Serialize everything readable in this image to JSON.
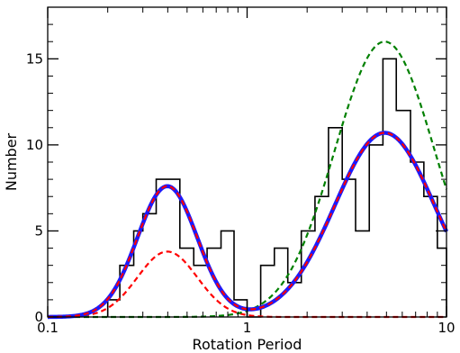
{
  "chart_data": {
    "type": "line",
    "xlabel": "Rotation Period",
    "ylabel": "Number",
    "xscale": "log",
    "xlim": [
      0.1,
      10
    ],
    "ylim": [
      0,
      18
    ],
    "xticks": [
      {
        "value": 0.1,
        "label": "0.1"
      },
      {
        "value": 1,
        "label": "1"
      },
      {
        "value": 10,
        "label": "10"
      }
    ],
    "yticks": [
      {
        "value": 0,
        "label": "0"
      },
      {
        "value": 5,
        "label": "5"
      },
      {
        "value": 10,
        "label": "10"
      },
      {
        "value": 15,
        "label": "15"
      }
    ],
    "grid": false,
    "legend": "none",
    "histogram": {
      "color": "#000000",
      "bin_edges": [
        0.2,
        0.23,
        0.27,
        0.3,
        0.35,
        0.46,
        0.54,
        0.63,
        0.74,
        0.86,
        1.0,
        1.17,
        1.37,
        1.6,
        1.87,
        2.19,
        2.56,
        3.0,
        3.5,
        4.1,
        4.8,
        5.6,
        6.6,
        7.7,
        9.0,
        10.0
      ],
      "counts": [
        1,
        3,
        5,
        6,
        8,
        4,
        3,
        4,
        5,
        1,
        0,
        3,
        4,
        2,
        5,
        7,
        11,
        8,
        5,
        10,
        15,
        12,
        9,
        7,
        4
      ]
    },
    "series": [
      {
        "style": "dashed",
        "color": "#ff0000",
        "components": [
          {
            "amp": 3.8,
            "mu_log10": -0.4,
            "sigma_log10": 0.15
          }
        ]
      },
      {
        "style": "dashed",
        "color": "#008000",
        "components": [
          {
            "amp": 16.0,
            "mu_log10": 0.69,
            "sigma_log10": 0.25
          }
        ]
      },
      {
        "style": "solid",
        "color": "#1a1aff",
        "components": [
          {
            "amp": 7.6,
            "mu_log10": -0.4,
            "sigma_log10": 0.15
          },
          {
            "amp": 10.7,
            "mu_log10": 0.69,
            "sigma_log10": 0.25
          }
        ]
      },
      {
        "style": "dashed",
        "color": "#ff0000",
        "components": [
          {
            "amp": 7.6,
            "mu_log10": -0.4,
            "sigma_log10": 0.15
          },
          {
            "amp": 10.7,
            "mu_log10": 0.69,
            "sigma_log10": 0.25
          }
        ]
      }
    ]
  }
}
